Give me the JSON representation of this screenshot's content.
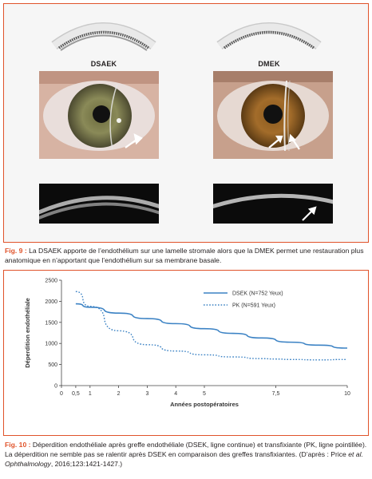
{
  "figure9": {
    "labels": {
      "left": "DSAEK",
      "right": "DMEK"
    },
    "caption": {
      "prefix": "Fig. 9 :",
      "text": "La DSAEK apporte de l’endothélium sur une lamelle stromale alors que la DMEK permet une restauration plus anatomique en n’apportant que l’endothélium sur sa membrane basale."
    },
    "colors": {
      "frame": "#e0532a"
    }
  },
  "figure10": {
    "caption": {
      "prefix": "Fig. 10 :",
      "text": "Déperdition endothéliale après greffe endothéliale (DSEK, ligne continue) et transfixiante (PK, ligne pointillée). La déperdition ne semble pas se ralentir après DSEK en comparaison des greffes transfixiantes.",
      "ref_open": "(D’après : Price",
      "ref_italic": "et al. Ophthalmology",
      "ref_close": ", 2016;123:1421-1427.)"
    }
  },
  "chart_data": {
    "type": "line",
    "title": "",
    "xlabel": "Années postopératoires",
    "ylabel": "Déperdition endothéliale",
    "xlim": [
      0,
      10
    ],
    "ylim": [
      0,
      2500
    ],
    "x_ticks": [
      0,
      0.5,
      1,
      2,
      3,
      4,
      5,
      7.5,
      10
    ],
    "x_tick_labels": [
      "0",
      "0,5",
      "1",
      "2",
      "3",
      "4",
      "5",
      "7,5",
      "10"
    ],
    "y_ticks": [
      0,
      500,
      1000,
      1500,
      2000,
      2500
    ],
    "grid": false,
    "legend_position": "top-right",
    "series": [
      {
        "name": "DSEK (N=752 Yeux)",
        "style": "solid",
        "color": "#3b82c4",
        "x": [
          0.5,
          1,
          2,
          3,
          4,
          5,
          6,
          7,
          8,
          9,
          10
        ],
        "y": [
          1940,
          1860,
          1720,
          1590,
          1470,
          1350,
          1240,
          1130,
          1030,
          960,
          890
        ]
      },
      {
        "name": "PK (N=591 Yeux)",
        "style": "dotted",
        "color": "#3b82c4",
        "x": [
          0.5,
          1,
          2,
          3,
          4,
          5,
          6,
          7,
          7.5,
          8,
          9,
          10
        ],
        "y": [
          2230,
          1880,
          1300,
          970,
          820,
          730,
          680,
          640,
          630,
          620,
          610,
          620
        ]
      }
    ]
  }
}
